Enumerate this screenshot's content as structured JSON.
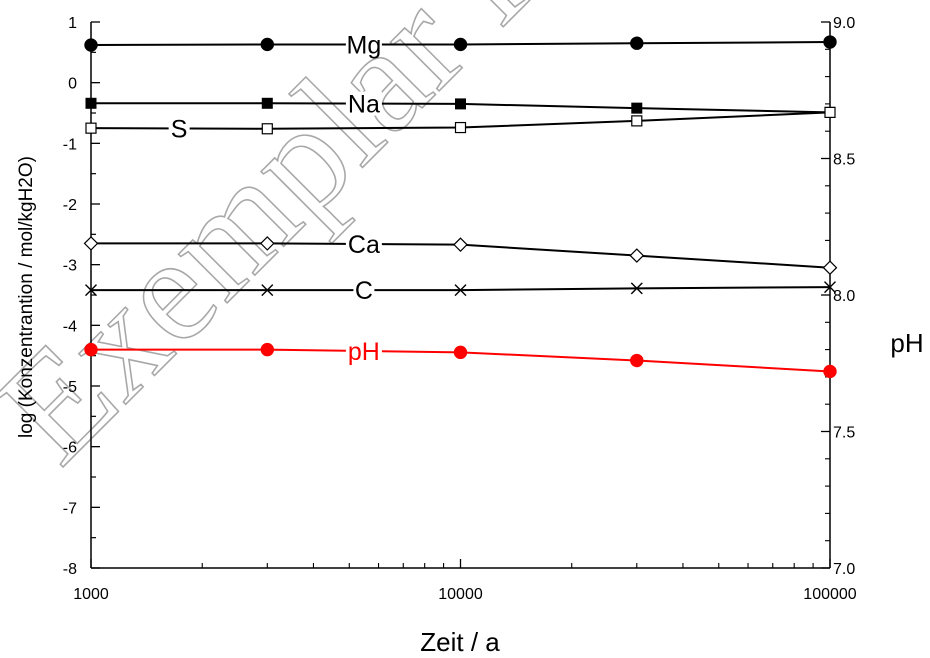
{
  "chart_data": {
    "type": "line",
    "xlabel": "Zeit / a",
    "ylabel": "log (Konzentrantion / mol/kgH2O)",
    "y2label": "pH",
    "x": [
      1000,
      3000,
      10000,
      30000,
      100000
    ],
    "xscale": "log",
    "xlim": [
      1000,
      100000
    ],
    "xticks": [
      1000,
      10000,
      100000
    ],
    "xtick_labels": [
      "1000",
      "10000",
      "100000"
    ],
    "ylim": [
      -8,
      1
    ],
    "yticks": [
      -8,
      -7,
      -6,
      -5,
      -4,
      -3,
      -2,
      -1,
      0,
      1
    ],
    "ytick_labels": [
      "-8",
      "-7",
      "-6",
      "-5",
      "-4",
      "-3",
      "-2",
      "-1",
      "0",
      "1"
    ],
    "y2lim": [
      7.0,
      9.0
    ],
    "y2ticks": [
      7.0,
      7.5,
      8.0,
      8.5,
      9.0
    ],
    "y2tick_labels": [
      "7.0",
      "7.5",
      "8.0",
      "8.5",
      "9.0"
    ],
    "grid": false,
    "legend": "none",
    "series": [
      {
        "name": "Mg",
        "axis": "left",
        "marker": "filled-circle",
        "color": "#000000",
        "label_at": 3,
        "values": [
          0.62,
          0.63,
          0.63,
          0.65,
          0.67
        ]
      },
      {
        "name": "Na",
        "axis": "left",
        "marker": "filled-square",
        "color": "#000000",
        "label_at": 3,
        "values": [
          -0.34,
          -0.34,
          -0.35,
          -0.42,
          -0.49
        ]
      },
      {
        "name": "S",
        "axis": "left",
        "marker": "open-square",
        "color": "#000000",
        "label_at": 1,
        "values": [
          -0.75,
          -0.76,
          -0.74,
          -0.63,
          -0.49
        ]
      },
      {
        "name": "Ca",
        "axis": "left",
        "marker": "open-diamond",
        "color": "#000000",
        "label_at": 3,
        "values": [
          -2.65,
          -2.65,
          -2.67,
          -2.85,
          -3.05
        ]
      },
      {
        "name": "C",
        "axis": "left",
        "marker": "cross",
        "color": "#000000",
        "label_at": 3,
        "values": [
          -3.42,
          -3.42,
          -3.42,
          -3.39,
          -3.37
        ]
      },
      {
        "name": "pH",
        "axis": "right",
        "marker": "filled-circle",
        "color": "#ff0000",
        "label_at": 3,
        "values": [
          7.8,
          7.8,
          7.79,
          7.76,
          7.72
        ]
      }
    ]
  },
  "watermark": {
    "text": "Exemplar für"
  }
}
